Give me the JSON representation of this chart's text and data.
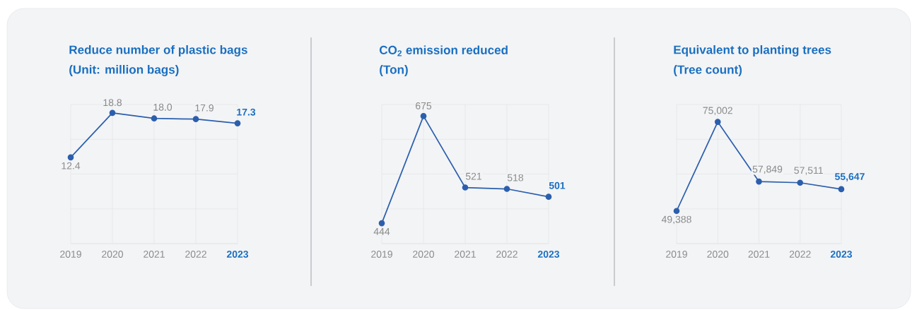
{
  "chart_data": [
    {
      "type": "line",
      "title": "Reduce number of plastic bags",
      "subtitle": "(Unit: million bags)",
      "categories": [
        "2019",
        "2020",
        "2021",
        "2022",
        "2023"
      ],
      "series": [
        {
          "color": "#2b5fad",
          "values": [
            12.4,
            18.8,
            18.0,
            17.9,
            17.3
          ],
          "value_labels": [
            "12.4",
            "18.8",
            "18.0",
            "17.9",
            "17.3"
          ]
        }
      ],
      "ylim": [
        0,
        20
      ],
      "yticks": [
        {
          "value": 0,
          "label": null
        },
        {
          "value": 5,
          "label": null
        },
        {
          "value": 10,
          "label": null
        },
        {
          "value": 15,
          "label": null
        },
        {
          "value": 20,
          "label": null
        }
      ],
      "tick_labels": "x",
      "grid": true,
      "marker": "circle"
    },
    {
      "type": "line",
      "title": "CO$_{2}$ emission reduced",
      "subtitle": "(Ton)",
      "categories": [
        "2019",
        "2020",
        "2021",
        "2022",
        "2023"
      ],
      "series": [
        {
          "color": "#2b5fad",
          "values": [
            444,
            675,
            521,
            518,
            501
          ],
          "value_labels": [
            "444",
            "675",
            "521",
            "518",
            "501"
          ]
        }
      ],
      "ylim": [
        400,
        700
      ],
      "yticks": [
        {
          "value": 400,
          "label": null
        },
        {
          "value": 475,
          "label": null
        },
        {
          "value": 550,
          "label": null
        },
        {
          "value": 625,
          "label": null
        },
        {
          "value": 700,
          "label": null
        }
      ],
      "tick_labels": "x",
      "grid": true,
      "marker": "circle"
    },
    {
      "type": "line",
      "title": "Equivalent to planting trees",
      "subtitle": "(Tree count)",
      "categories": [
        "2019",
        "2020",
        "2021",
        "2022",
        "2023"
      ],
      "series": [
        {
          "color": "#2b5fad",
          "values": [
            49388,
            75002,
            57849,
            57511,
            55647
          ],
          "value_labels": [
            "49,388",
            "75,002",
            "57,849",
            "57,511",
            "55,647"
          ]
        }
      ],
      "ylim": [
        40000,
        80000
      ],
      "yticks": [
        {
          "value": 40000,
          "label": null
        },
        {
          "value": 50000,
          "label": null
        },
        {
          "value": 60000,
          "label": null
        },
        {
          "value": 70000,
          "label": null
        },
        {
          "value": 80000,
          "label": null
        }
      ],
      "tick_labels": "x",
      "grid": true,
      "marker": "circle"
    }
  ]
}
